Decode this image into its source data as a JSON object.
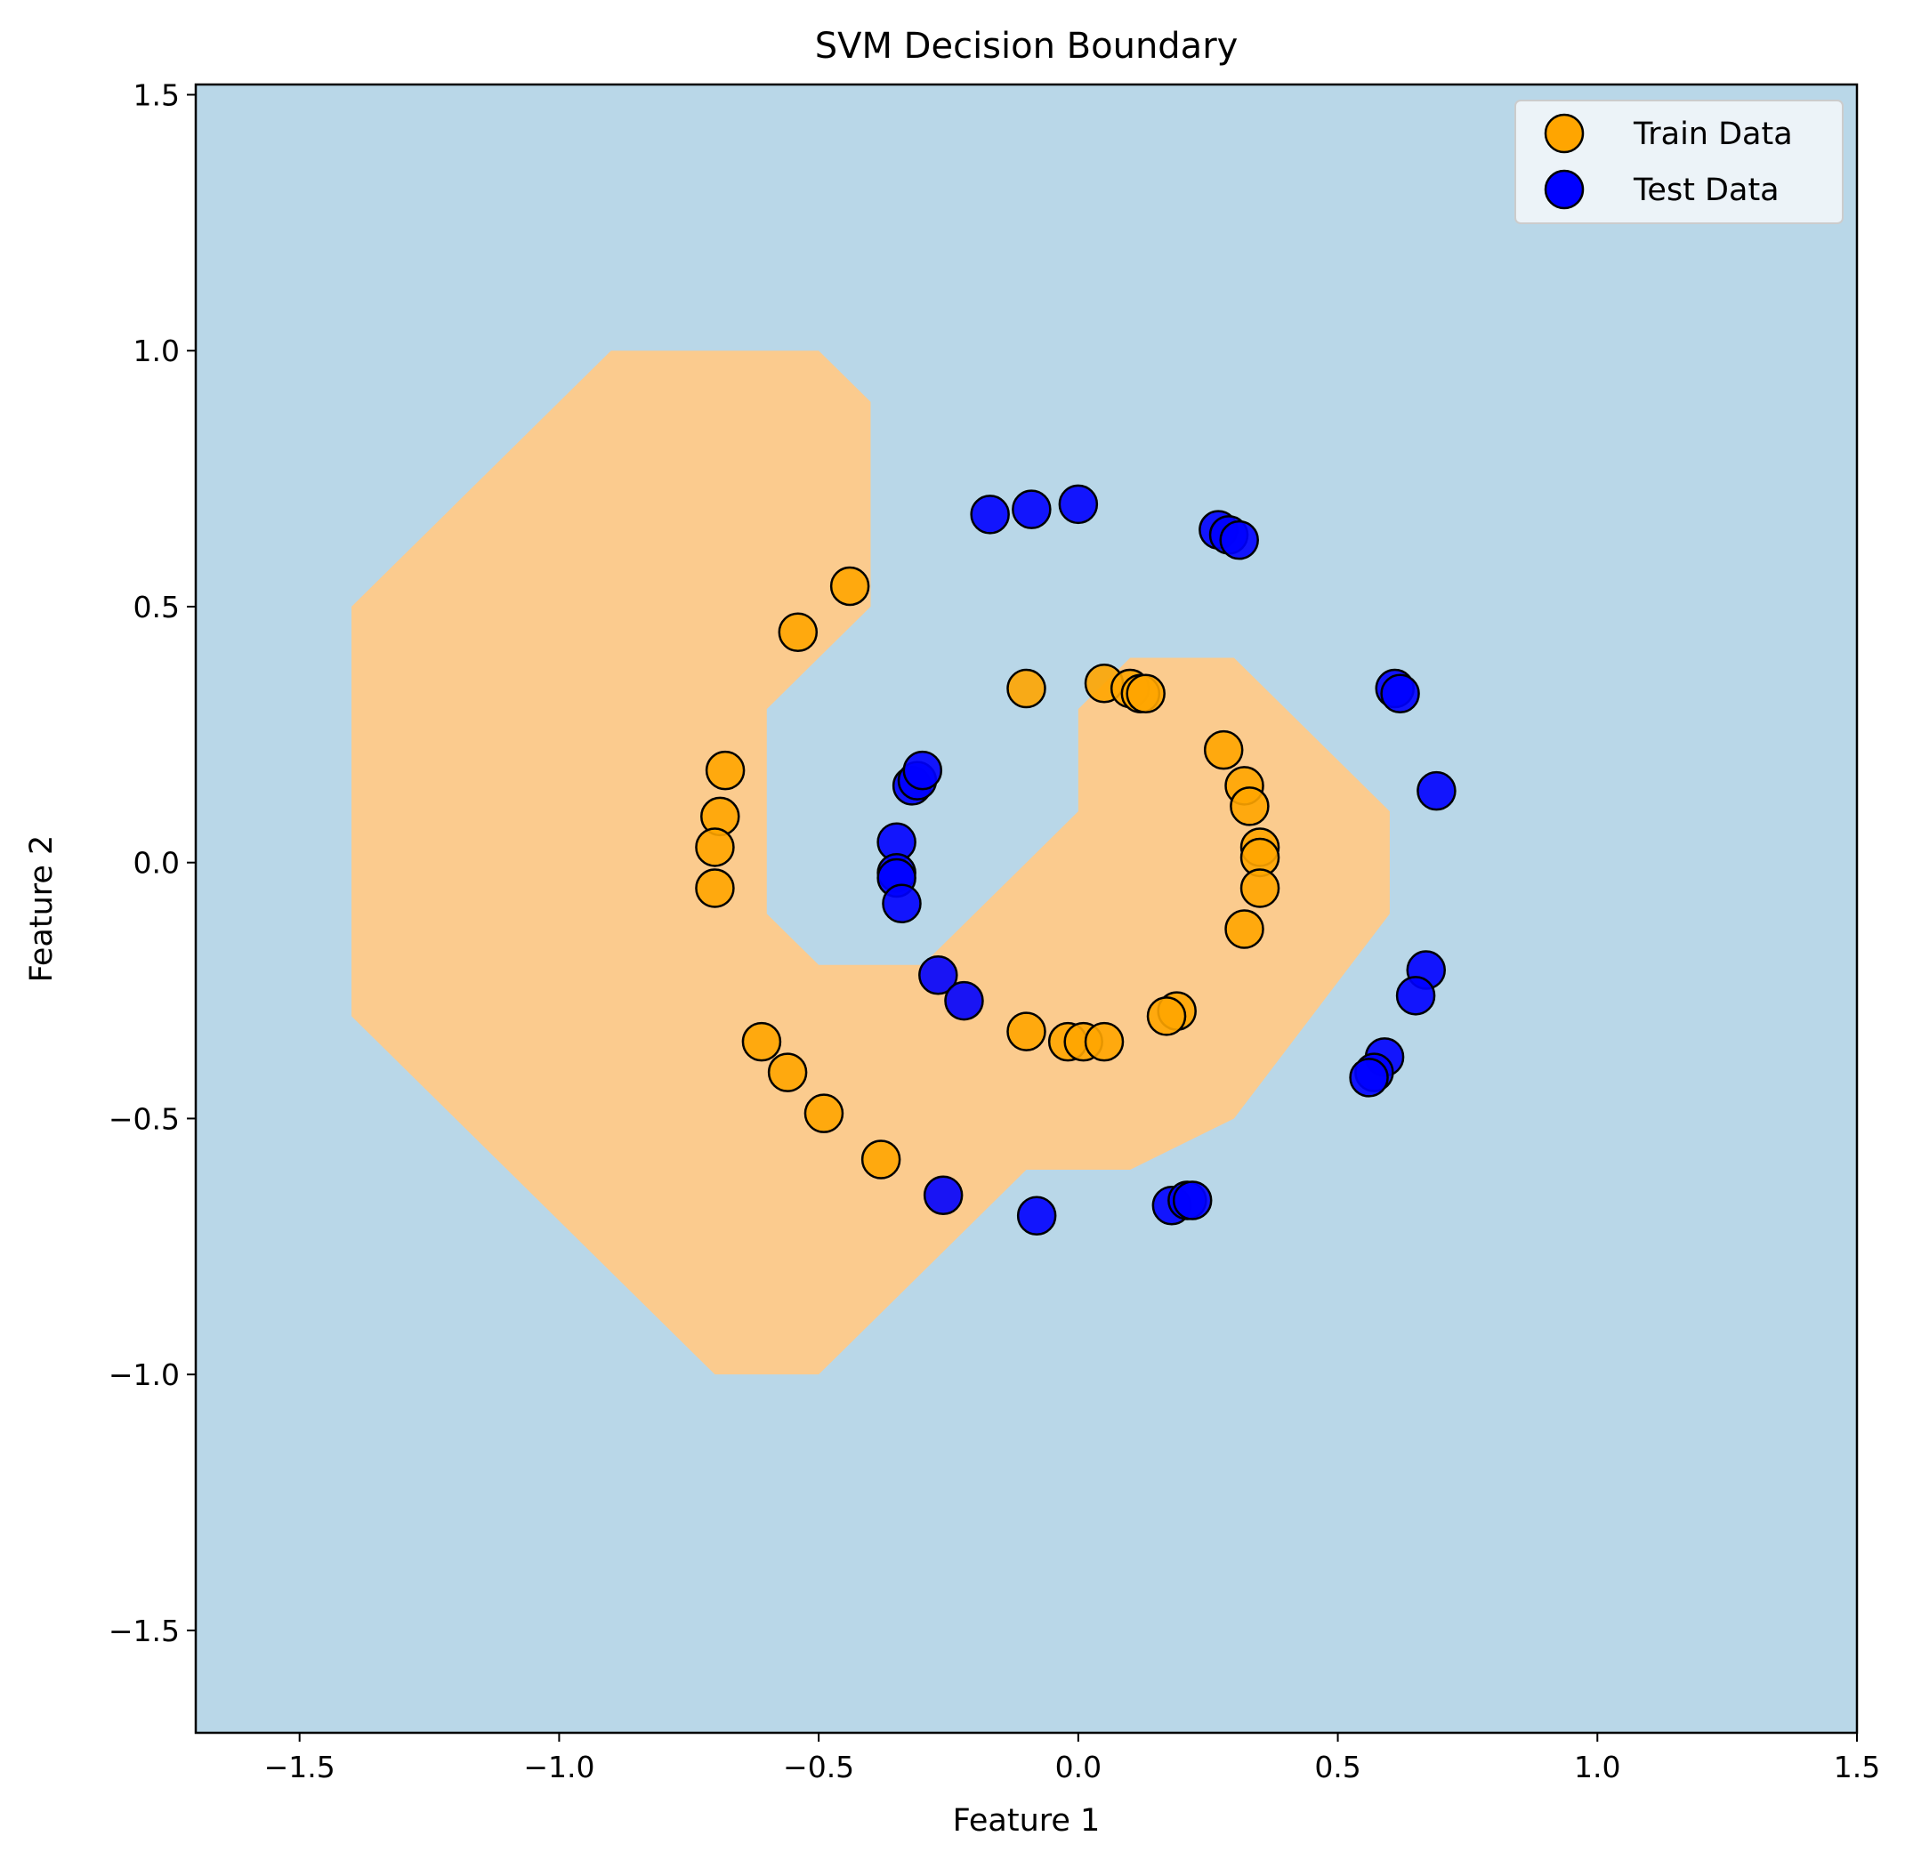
{
  "chart_data": {
    "type": "scatter",
    "title": "SVM Decision Boundary",
    "xlabel": "Feature 1",
    "ylabel": "Feature 2",
    "xlim": [
      -1.7,
      1.5
    ],
    "ylim": [
      -1.7,
      1.52
    ],
    "xticks": [
      -1.5,
      -1.0,
      -0.5,
      0.0,
      0.5,
      1.0,
      1.5
    ],
    "yticks": [
      -1.5,
      -1.0,
      -0.5,
      0.0,
      0.5,
      1.0,
      1.5
    ],
    "xtick_labels": [
      "−1.5",
      "−1.0",
      "−0.5",
      "0.0",
      "0.5",
      "1.0",
      "1.5"
    ],
    "ytick_labels": [
      "−1.5",
      "−1.0",
      "−0.5",
      "0.0",
      "0.5",
      "1.0",
      "1.5"
    ],
    "grid": false,
    "legend_position": "top-right",
    "background_color": "#b9d7e8",
    "decision_region": {
      "color": "#fbcb8e",
      "polygon": [
        [
          -0.9,
          1.0
        ],
        [
          -0.5,
          1.0
        ],
        [
          -0.4,
          0.9
        ],
        [
          -0.4,
          0.5
        ],
        [
          -0.6,
          0.3
        ],
        [
          -0.6,
          -0.1
        ],
        [
          -0.5,
          -0.2
        ],
        [
          -0.3,
          -0.2
        ],
        [
          0.0,
          0.1
        ],
        [
          0.0,
          0.3
        ],
        [
          0.1,
          0.4
        ],
        [
          0.3,
          0.4
        ],
        [
          0.6,
          0.1
        ],
        [
          0.6,
          -0.1
        ],
        [
          0.3,
          -0.5
        ],
        [
          0.1,
          -0.6
        ],
        [
          -0.1,
          -0.6
        ],
        [
          -0.5,
          -1.0
        ],
        [
          -0.7,
          -1.0
        ],
        [
          -1.4,
          -0.3
        ],
        [
          -1.4,
          0.5
        ]
      ]
    },
    "series": [
      {
        "name": "Train Data",
        "color": "#ffa500",
        "points": [
          [
            -0.44,
            0.54
          ],
          [
            -0.54,
            0.45
          ],
          [
            -0.68,
            0.18
          ],
          [
            -0.69,
            0.09
          ],
          [
            -0.7,
            0.03
          ],
          [
            -0.7,
            -0.05
          ],
          [
            -0.61,
            -0.35
          ],
          [
            -0.56,
            -0.41
          ],
          [
            -0.49,
            -0.49
          ],
          [
            -0.38,
            -0.58
          ],
          [
            -0.1,
            0.34
          ],
          [
            0.05,
            0.35
          ],
          [
            0.1,
            0.34
          ],
          [
            0.12,
            0.33
          ],
          [
            0.13,
            0.33
          ],
          [
            0.28,
            0.22
          ],
          [
            0.32,
            0.15
          ],
          [
            0.33,
            0.11
          ],
          [
            0.35,
            0.03
          ],
          [
            0.35,
            0.01
          ],
          [
            0.35,
            -0.05
          ],
          [
            0.32,
            -0.13
          ],
          [
            0.19,
            -0.29
          ],
          [
            0.17,
            -0.3
          ],
          [
            -0.1,
            -0.33
          ],
          [
            -0.02,
            -0.35
          ],
          [
            0.01,
            -0.35
          ],
          [
            0.05,
            -0.35
          ]
        ]
      },
      {
        "name": "Test Data",
        "color": "#0000ff",
        "points": [
          [
            -0.17,
            0.68
          ],
          [
            -0.09,
            0.69
          ],
          [
            0.0,
            0.7
          ],
          [
            0.27,
            0.65
          ],
          [
            0.29,
            0.64
          ],
          [
            0.31,
            0.63
          ],
          [
            0.61,
            0.34
          ],
          [
            0.62,
            0.33
          ],
          [
            0.69,
            0.14
          ],
          [
            -0.32,
            0.15
          ],
          [
            -0.31,
            0.16
          ],
          [
            -0.3,
            0.18
          ],
          [
            -0.35,
            0.04
          ],
          [
            -0.35,
            -0.02
          ],
          [
            -0.35,
            -0.03
          ],
          [
            -0.34,
            -0.08
          ],
          [
            -0.27,
            -0.22
          ],
          [
            -0.22,
            -0.27
          ],
          [
            0.67,
            -0.21
          ],
          [
            0.65,
            -0.26
          ],
          [
            0.59,
            -0.38
          ],
          [
            0.57,
            -0.41
          ],
          [
            0.56,
            -0.42
          ],
          [
            -0.26,
            -0.65
          ],
          [
            -0.08,
            -0.69
          ],
          [
            0.18,
            -0.67
          ],
          [
            0.21,
            -0.66
          ],
          [
            0.22,
            -0.66
          ]
        ]
      }
    ]
  }
}
